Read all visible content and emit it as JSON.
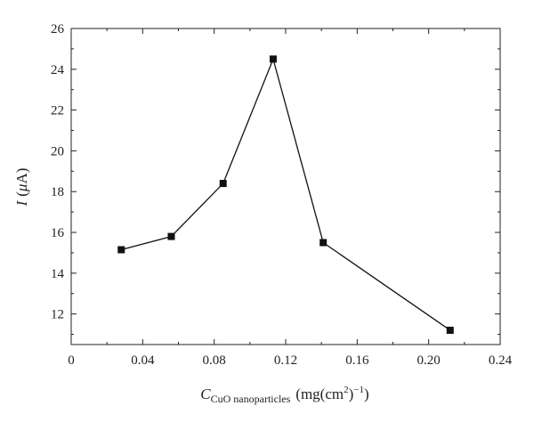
{
  "chart_data": {
    "type": "line",
    "title": "",
    "xlabel": {
      "symbol": "C",
      "subscript": "CuO nanoparticles",
      "unit_open": "(mg(cm",
      "unit_sup": "2",
      "unit_mid": ")",
      "unit_sup2": "−1",
      "unit_close": ")"
    },
    "ylabel": {
      "symbol": "I",
      "unit_open": "(",
      "unit_mu": "μ",
      "unit_rest": "A)"
    },
    "xlim": [
      0,
      0.24
    ],
    "ylim": [
      10.5,
      26
    ],
    "xticks": [
      "0",
      "0.04",
      "0.08",
      "0.12",
      "0.16",
      "0.20",
      "0.24"
    ],
    "yticks": [
      "12",
      "14",
      "16",
      "18",
      "20",
      "22",
      "24",
      "26"
    ],
    "grid": false,
    "legend": "none",
    "marker": "square",
    "series": [
      {
        "x": [
          0.028,
          0.056,
          0.085,
          0.113,
          0.141,
          0.212
        ],
        "y": [
          15.15,
          15.8,
          18.4,
          24.5,
          15.5,
          11.2
        ]
      }
    ]
  }
}
